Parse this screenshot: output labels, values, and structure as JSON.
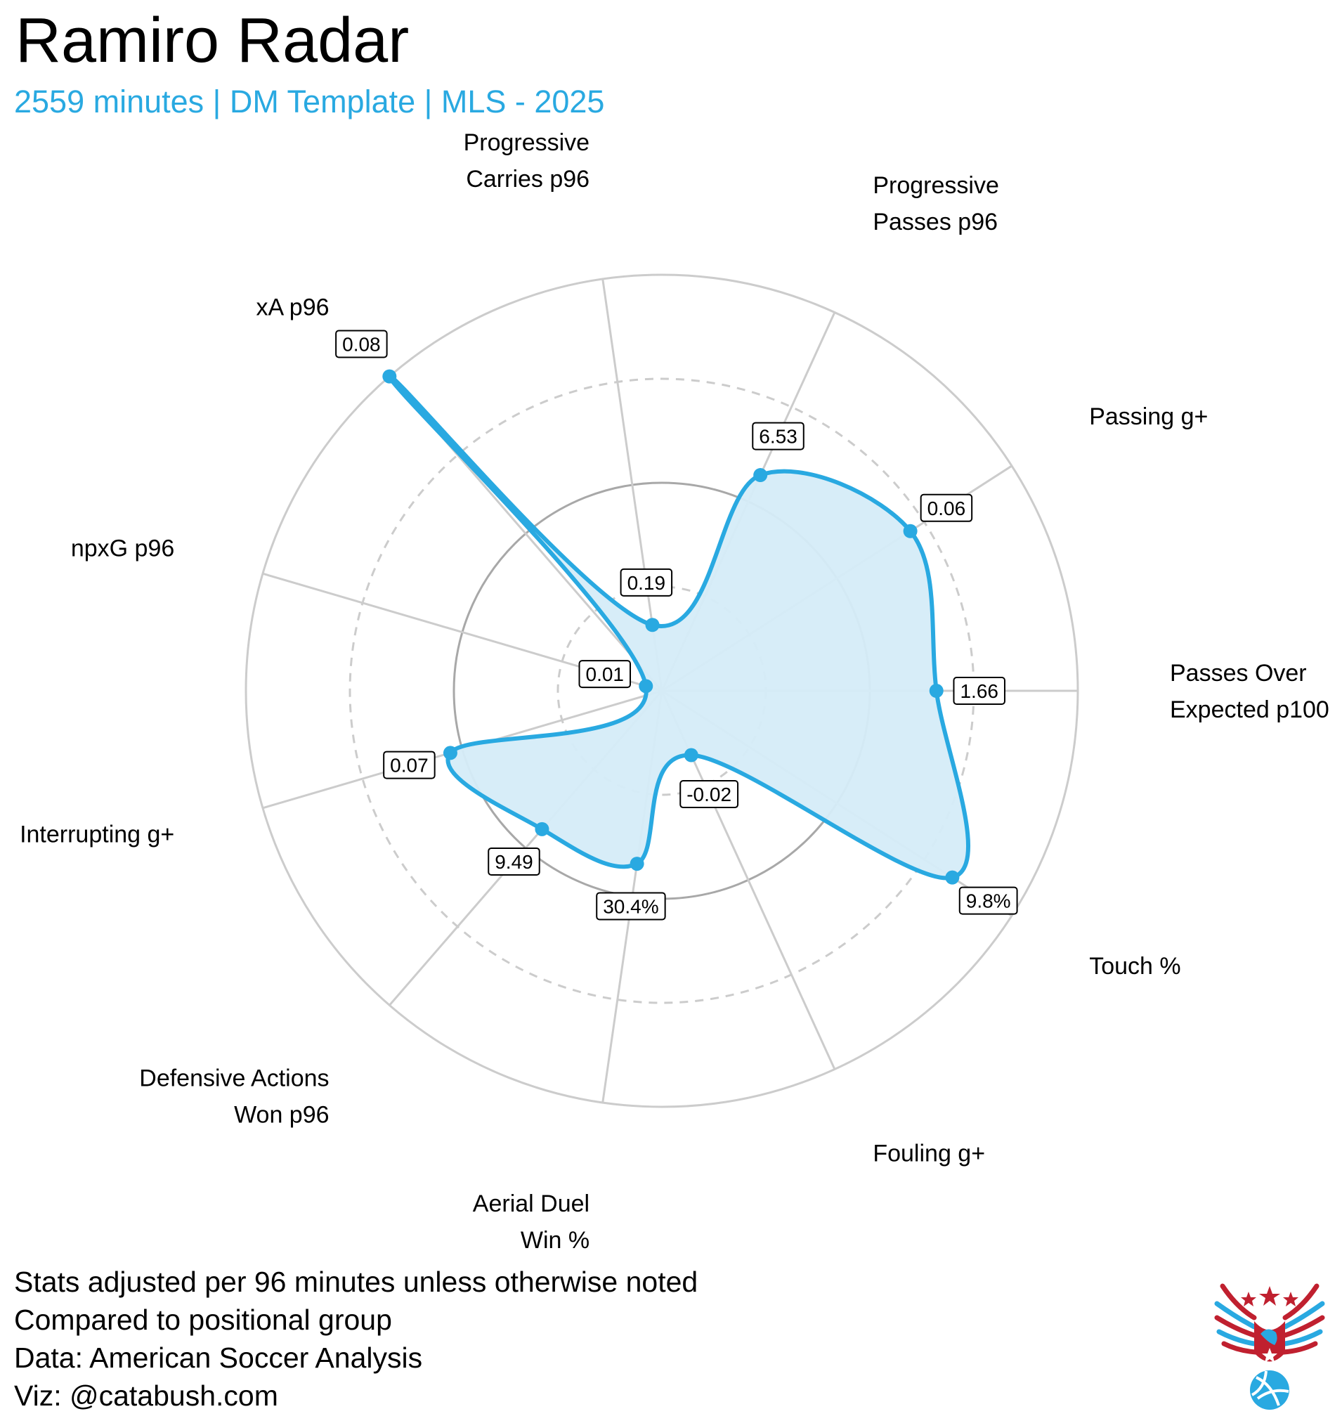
{
  "chart_data": {
    "type": "radar",
    "title": "Ramiro Radar",
    "subtitle": "2559 minutes | DM Template | MLS - 2025",
    "scale_note": "radial position = percentile vs positional group (0-100)",
    "rlim": [
      0,
      100
    ],
    "grid_rings": [
      25,
      50,
      75,
      100
    ],
    "axes": [
      {
        "label": [
          "Passes Over",
          "Expected p100"
        ],
        "value_label": "1.66",
        "percentile": 66
      },
      {
        "label": [
          "Touch %"
        ],
        "value_label": "9.8%",
        "percentile": 83
      },
      {
        "label": [
          "Fouling g+"
        ],
        "value_label": "-0.02",
        "percentile": 17
      },
      {
        "label": [
          "Aerial Duel",
          "Win %"
        ],
        "value_label": "30.4%",
        "percentile": 42
      },
      {
        "label": [
          "Defensive Actions",
          "Won p96"
        ],
        "value_label": "9.49",
        "percentile": 44
      },
      {
        "label": [
          "Interrupting g+"
        ],
        "value_label": "0.07",
        "percentile": 53
      },
      {
        "label": [
          "npxG p96"
        ],
        "value_label": "0.01",
        "percentile": 4
      },
      {
        "label": [
          "xA p96"
        ],
        "value_label": "0.08",
        "percentile": 100
      },
      {
        "label": [
          "Progressive",
          "Carries p96"
        ],
        "value_label": "0.19",
        "percentile": 16
      },
      {
        "label": [
          "Progressive",
          "Passes p96"
        ],
        "value_label": "6.53",
        "percentile": 57
      },
      {
        "label": [
          "Passing g+"
        ],
        "value_label": "0.06",
        "percentile": 71
      }
    ],
    "colors": {
      "accent": "#29a9e1",
      "fill": "#d5ecf8",
      "grid": "#cccccc",
      "grid_mid": "#a8a8a8"
    }
  },
  "footer": [
    "Stats adjusted per 96 minutes unless otherwise noted",
    "Compared to positional group",
    "Data: American Soccer Analysis",
    "Viz: @catabush.com"
  ],
  "logo": {
    "icon": "eagle-volleyball-logo"
  }
}
